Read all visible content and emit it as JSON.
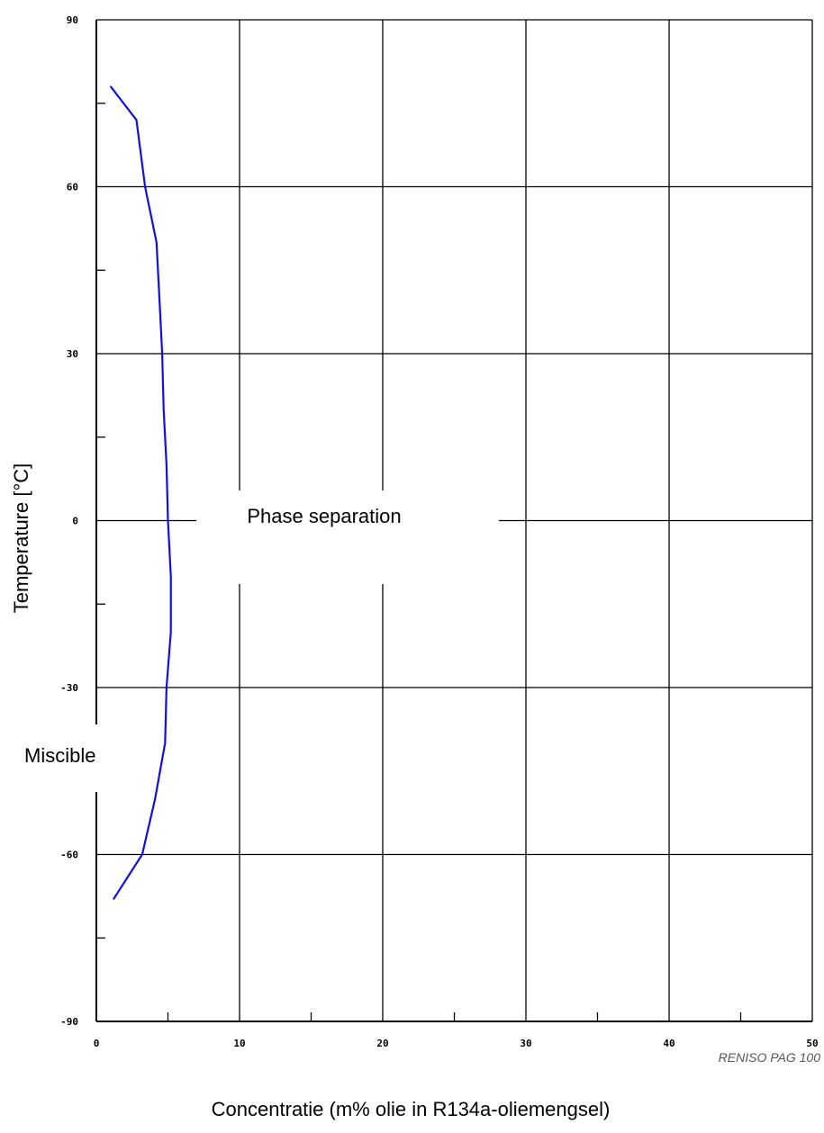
{
  "chart_data": {
    "type": "line",
    "title": "",
    "xlabel": "Concentratie (m% olie in R134a-oliemengsel)",
    "ylabel": "Temperature [°C]",
    "xlim": [
      0,
      50
    ],
    "ylim": [
      -90,
      90
    ],
    "x_ticks": [
      0,
      10,
      20,
      30,
      40,
      50
    ],
    "y_ticks": [
      -90,
      -60,
      -30,
      0,
      30,
      60,
      90
    ],
    "x_minor_ticks": [
      5,
      15,
      25,
      35,
      45
    ],
    "y_minor_ticks": [
      -75,
      -45,
      -15,
      15,
      45,
      75
    ],
    "grid": true,
    "series_color": "#1010e0",
    "series": [
      {
        "name": "",
        "points": [
          {
            "x": 1.0,
            "y": 78
          },
          {
            "x": 2.8,
            "y": 72
          },
          {
            "x": 3.4,
            "y": 60
          },
          {
            "x": 4.2,
            "y": 50
          },
          {
            "x": 4.4,
            "y": 40
          },
          {
            "x": 4.6,
            "y": 30
          },
          {
            "x": 4.7,
            "y": 20
          },
          {
            "x": 4.9,
            "y": 10
          },
          {
            "x": 5.0,
            "y": 0
          },
          {
            "x": 5.2,
            "y": -10
          },
          {
            "x": 5.2,
            "y": -20
          },
          {
            "x": 4.9,
            "y": -30
          },
          {
            "x": 4.8,
            "y": -40
          },
          {
            "x": 4.1,
            "y": -50
          },
          {
            "x": 3.2,
            "y": -60
          },
          {
            "x": 1.2,
            "y": -68
          }
        ]
      }
    ],
    "annotations": [
      "Phase separation",
      "Miscible"
    ],
    "source_note": "RENISO PAG 100"
  }
}
